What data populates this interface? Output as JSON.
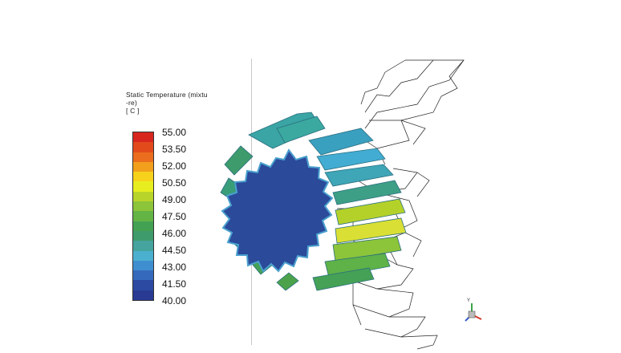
{
  "legend": {
    "title_lines": [
      "Static Temperature (mixtu",
      "-re)",
      "[ C ]"
    ],
    "ticks": [
      "55.00",
      "53.50",
      "52.00",
      "50.50",
      "49.00",
      "47.50",
      "46.00",
      "44.50",
      "43.00",
      "41.50",
      "40.00"
    ],
    "colors": [
      "#d7261e",
      "#e24a1c",
      "#ea6e1e",
      "#f19f1c",
      "#f6d21c",
      "#e7ee1f",
      "#b8d42a",
      "#8cc43a",
      "#63b445",
      "#43a153",
      "#3e9b6b",
      "#45a49d",
      "#4bb0cf",
      "#3f8fd0",
      "#3569bc",
      "#2c4aa2",
      "#283a93"
    ]
  },
  "colors": {
    "gear_face": "#2b4a9a",
    "gear_outline": "#4aa0cf",
    "worm_wire": "#222222"
  },
  "icons": [
    "axis-triad-icon"
  ]
}
